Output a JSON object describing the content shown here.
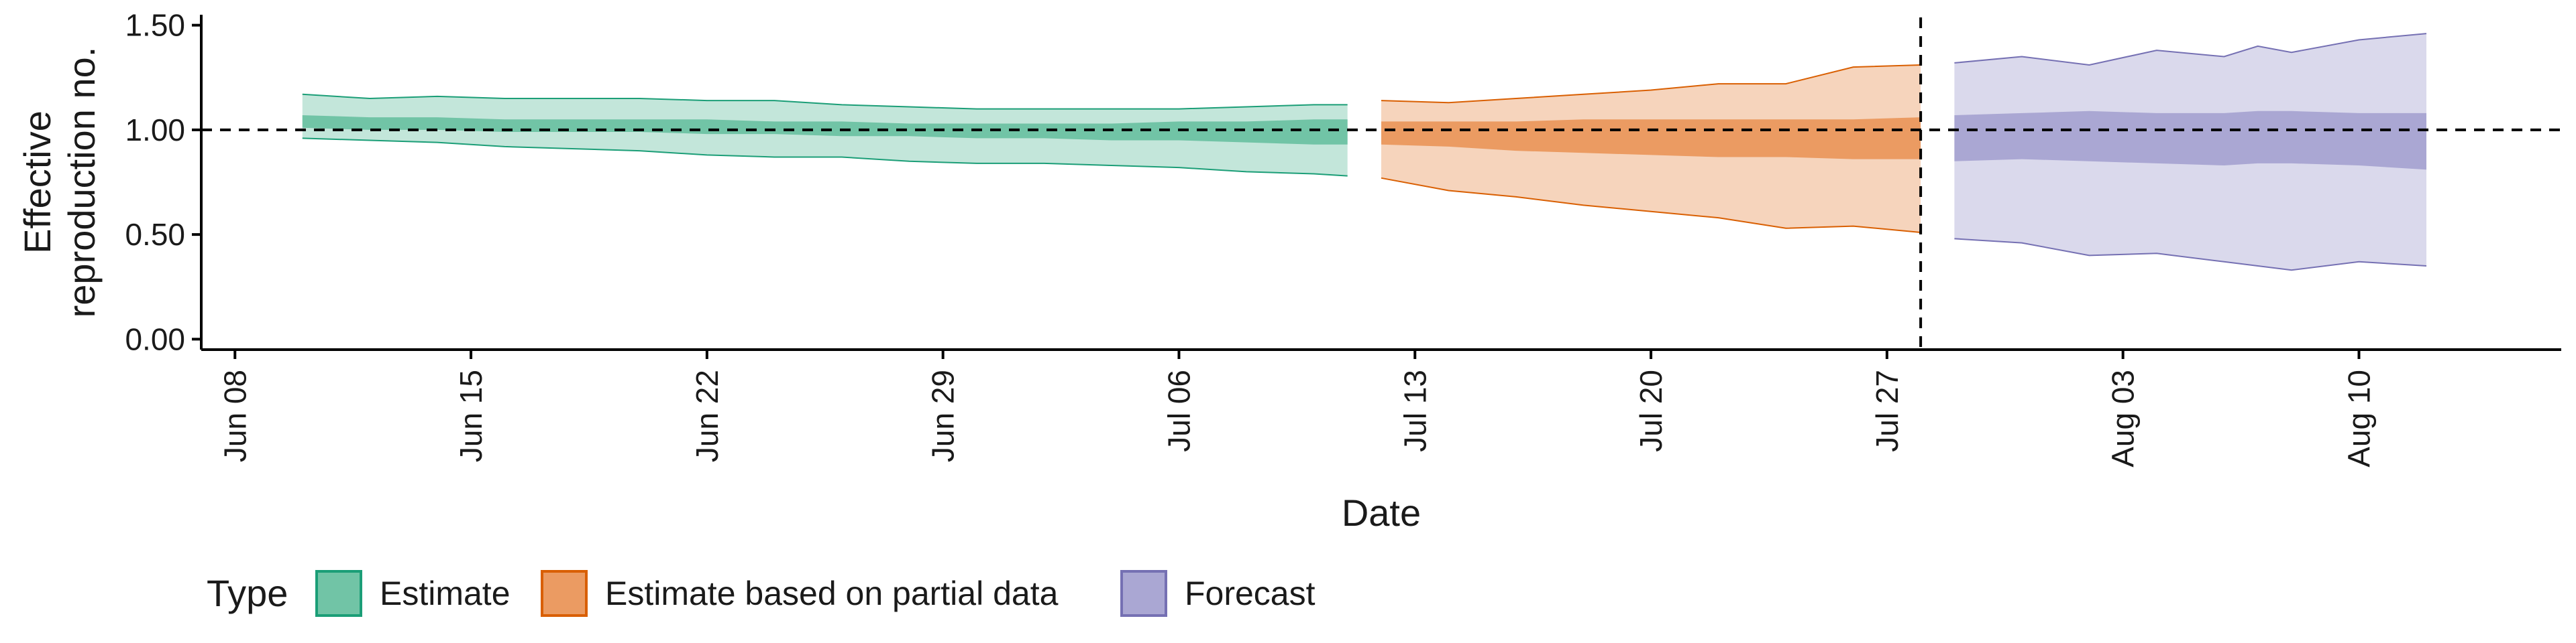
{
  "chart_data": {
    "type": "area",
    "title": "",
    "xlabel": "Date",
    "ylabel": "Effective reproduction no.",
    "ylabel_lines": [
      "Effective",
      "reproduction no."
    ],
    "xlim": [
      "2020-06-07",
      "2020-08-16"
    ],
    "ylim": [
      -0.05,
      1.55
    ],
    "yticks": [
      0.0,
      0.5,
      1.0,
      1.5
    ],
    "ytick_labels": [
      "0.00",
      "0.50",
      "1.00",
      "1.50"
    ],
    "xticks": [
      "2020-06-08",
      "2020-06-15",
      "2020-06-22",
      "2020-06-29",
      "2020-07-06",
      "2020-07-13",
      "2020-07-20",
      "2020-07-27",
      "2020-08-03",
      "2020-08-10"
    ],
    "xtick_labels": [
      "Jun 08",
      "Jun 15",
      "Jun 22",
      "Jun 29",
      "Jul 06",
      "Jul 13",
      "Jul 20",
      "Jul 27",
      "Aug 03",
      "Aug 10"
    ],
    "reference_hline": 1.0,
    "reference_vline": "2020-07-28",
    "grid": false,
    "legend": {
      "title": "Type",
      "placement": "bottom-left",
      "entries": [
        "Estimate",
        "Estimate based on partial data",
        "Forecast"
      ]
    },
    "series": [
      {
        "name": "Estimate",
        "color": "#1b9e77",
        "outer_fill": "#c3e6da",
        "inner_fill": "#71c4a6",
        "x": [
          "2020-06-10",
          "2020-06-12",
          "2020-06-14",
          "2020-06-16",
          "2020-06-18",
          "2020-06-20",
          "2020-06-22",
          "2020-06-24",
          "2020-06-26",
          "2020-06-28",
          "2020-06-30",
          "2020-07-02",
          "2020-07-04",
          "2020-07-06",
          "2020-07-08",
          "2020-07-10",
          "2020-07-11"
        ],
        "outer_upper": [
          1.17,
          1.15,
          1.16,
          1.15,
          1.15,
          1.15,
          1.14,
          1.14,
          1.12,
          1.11,
          1.1,
          1.1,
          1.1,
          1.1,
          1.11,
          1.12,
          1.12
        ],
        "outer_lower": [
          0.96,
          0.95,
          0.94,
          0.92,
          0.91,
          0.9,
          0.88,
          0.87,
          0.87,
          0.85,
          0.84,
          0.84,
          0.83,
          0.82,
          0.8,
          0.79,
          0.78
        ],
        "inner_upper": [
          1.07,
          1.06,
          1.06,
          1.05,
          1.05,
          1.05,
          1.05,
          1.04,
          1.04,
          1.03,
          1.03,
          1.03,
          1.03,
          1.04,
          1.04,
          1.05,
          1.05
        ],
        "inner_lower": [
          1.01,
          1.0,
          1.0,
          0.99,
          0.99,
          0.99,
          0.98,
          0.98,
          0.97,
          0.97,
          0.96,
          0.96,
          0.95,
          0.95,
          0.94,
          0.93,
          0.93
        ]
      },
      {
        "name": "Estimate based on partial data",
        "color": "#d95f02",
        "outer_fill": "#f6d4bc",
        "inner_fill": "#eb9b62",
        "x": [
          "2020-07-12",
          "2020-07-14",
          "2020-07-16",
          "2020-07-18",
          "2020-07-20",
          "2020-07-22",
          "2020-07-24",
          "2020-07-26",
          "2020-07-28"
        ],
        "outer_upper": [
          1.14,
          1.13,
          1.15,
          1.17,
          1.19,
          1.22,
          1.22,
          1.3,
          1.31
        ],
        "outer_lower": [
          0.77,
          0.71,
          0.68,
          0.64,
          0.61,
          0.58,
          0.53,
          0.54,
          0.51
        ],
        "inner_upper": [
          1.04,
          1.04,
          1.04,
          1.05,
          1.05,
          1.05,
          1.05,
          1.05,
          1.06
        ],
        "inner_lower": [
          0.93,
          0.92,
          0.9,
          0.89,
          0.88,
          0.87,
          0.87,
          0.86,
          0.86
        ]
      },
      {
        "name": "Forecast",
        "color": "#7570b3",
        "outer_fill": "#dad9ec",
        "inner_fill": "#aaa7d3",
        "x": [
          "2020-07-29",
          "2020-07-31",
          "2020-08-02",
          "2020-08-04",
          "2020-08-06",
          "2020-08-07",
          "2020-08-08",
          "2020-08-10",
          "2020-08-12"
        ],
        "outer_upper": [
          1.32,
          1.35,
          1.31,
          1.38,
          1.35,
          1.4,
          1.37,
          1.43,
          1.46
        ],
        "outer_lower": [
          0.48,
          0.46,
          0.4,
          0.41,
          0.37,
          0.35,
          0.33,
          0.37,
          0.35
        ],
        "inner_upper": [
          1.07,
          1.08,
          1.09,
          1.08,
          1.08,
          1.09,
          1.09,
          1.08,
          1.08
        ],
        "inner_lower": [
          0.85,
          0.86,
          0.85,
          0.84,
          0.83,
          0.84,
          0.84,
          0.83,
          0.81
        ]
      }
    ]
  }
}
